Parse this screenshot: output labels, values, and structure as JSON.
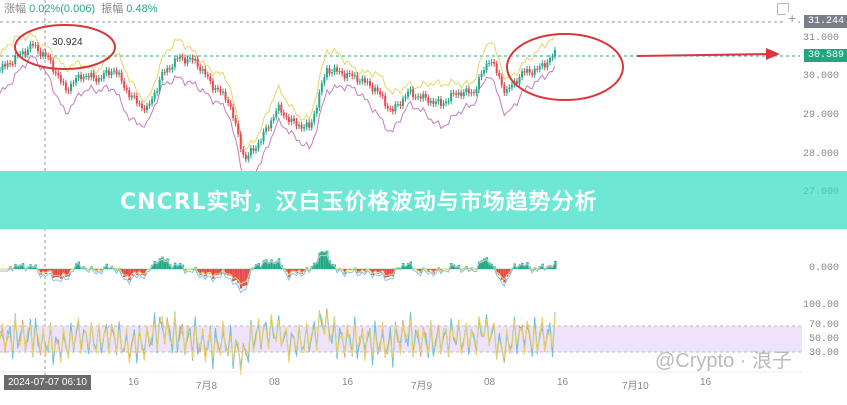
{
  "header": {
    "change_label": "涨幅",
    "change_value": "0.02%(0.006)",
    "amplitude_label": "振幅",
    "amplitude_value": "0.48%"
  },
  "banner": {
    "title": "CNCRL实时，汉白玉价格波动与市场趋势分析"
  },
  "watermark": "@Crypto · 浪子",
  "colors": {
    "up": "#26a889",
    "down": "#e5484d",
    "upper_band": "#e8d36a",
    "lower_band": "#c77dbb",
    "banner": "#6ee8d5",
    "annotation": "#d9373b",
    "rsi_band": "#eee3fb"
  },
  "chart_data": {
    "type": "line",
    "price_axis": {
      "ticks": [
        "31.000",
        "30.000",
        "29.000",
        "28.000",
        "27.000"
      ],
      "range": [
        26.6,
        31.6
      ]
    },
    "high_label": "30.924",
    "crosshair_price": "31.244",
    "last_price": "30.589",
    "macd_axis": {
      "ticks": [
        "0.000"
      ]
    },
    "rsi_axis": {
      "ticks": [
        "100.00",
        "70.00",
        "50.00",
        "30.00"
      ]
    },
    "x_ticks": [
      "16",
      "7月8",
      "08",
      "16",
      "7月9",
      "08",
      "16",
      "7月10",
      "16"
    ],
    "crosshair_time": "2024-07-07 06:10",
    "close": [
      30.18,
      30.5,
      30.82,
      30.45,
      29.67,
      30.05,
      29.95,
      30.2,
      29.5,
      29.15,
      30.1,
      30.5,
      30.4,
      29.8,
      29.4,
      27.87,
      28.4,
      29.2,
      28.8,
      28.7,
      30.2,
      30.1,
      29.95,
      29.7,
      29.1,
      29.6,
      29.45,
      29.3,
      29.6,
      29.6,
      30.5,
      29.6,
      30.1,
      30.2,
      30.59
    ]
  }
}
